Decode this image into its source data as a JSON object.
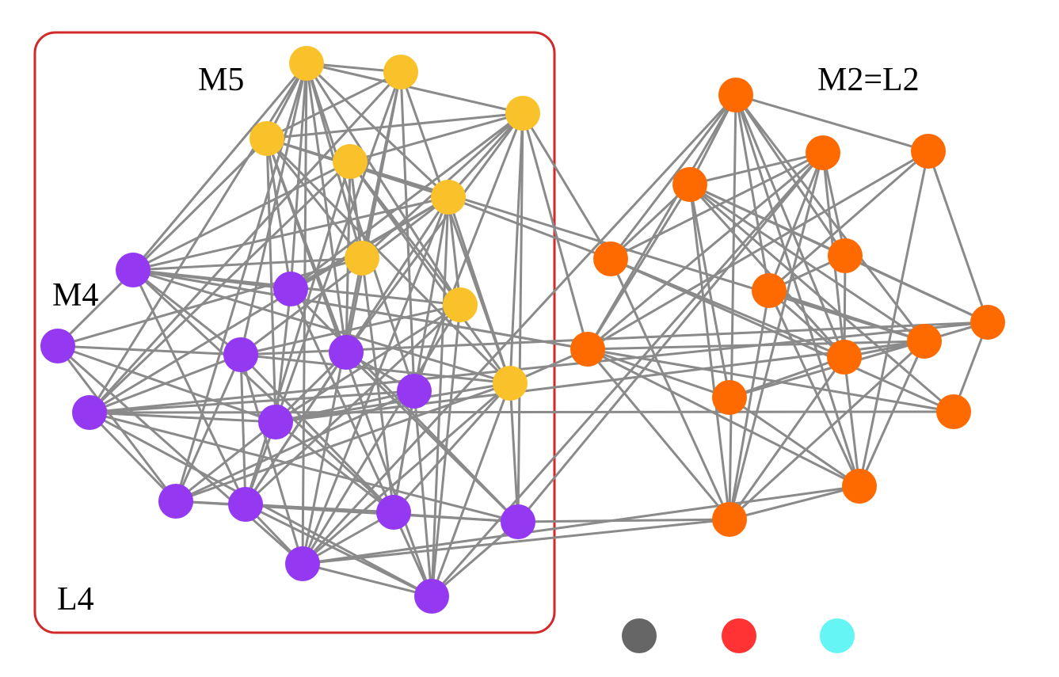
{
  "labels": {
    "m5": "M5",
    "m4": "M4",
    "m2_l2": "M2=L2",
    "l4": "L4"
  },
  "colors": {
    "M5": "#f9c22b",
    "M4": "#9438f2",
    "M2": "#ff6a00",
    "edge": "#8a8a8a",
    "box": "#d12a2a"
  },
  "nodes": [
    {
      "id": "y1",
      "group": "M5"
    },
    {
      "id": "y2",
      "group": "M5"
    },
    {
      "id": "y3",
      "group": "M5"
    },
    {
      "id": "y4",
      "group": "M5"
    },
    {
      "id": "y5",
      "group": "M5"
    },
    {
      "id": "y6",
      "group": "M5"
    },
    {
      "id": "y7",
      "group": "M5"
    },
    {
      "id": "y8",
      "group": "M5"
    },
    {
      "id": "y9",
      "group": "M5"
    },
    {
      "id": "p1",
      "group": "M4"
    },
    {
      "id": "p2",
      "group": "M4"
    },
    {
      "id": "p3",
      "group": "M4"
    },
    {
      "id": "p4",
      "group": "M4"
    },
    {
      "id": "p5",
      "group": "M4"
    },
    {
      "id": "p6",
      "group": "M4"
    },
    {
      "id": "p7",
      "group": "M4"
    },
    {
      "id": "p8",
      "group": "M4"
    },
    {
      "id": "p9",
      "group": "M4"
    },
    {
      "id": "p10",
      "group": "M4"
    },
    {
      "id": "p11",
      "group": "M4"
    },
    {
      "id": "p12",
      "group": "M4"
    },
    {
      "id": "p13",
      "group": "M4"
    },
    {
      "id": "o1",
      "group": "M2"
    },
    {
      "id": "o2",
      "group": "M2"
    },
    {
      "id": "o3",
      "group": "M2"
    },
    {
      "id": "o4",
      "group": "M2"
    },
    {
      "id": "o5",
      "group": "M2"
    },
    {
      "id": "o6",
      "group": "M2"
    },
    {
      "id": "o7",
      "group": "M2"
    },
    {
      "id": "o8",
      "group": "M2"
    },
    {
      "id": "o9",
      "group": "M2"
    },
    {
      "id": "o10",
      "group": "M2"
    },
    {
      "id": "o11",
      "group": "M2"
    },
    {
      "id": "o12",
      "group": "M2"
    },
    {
      "id": "o13",
      "group": "M2"
    },
    {
      "id": "o14",
      "group": "M2"
    }
  ],
  "legend": [
    {
      "color": "#666666"
    },
    {
      "color": "#ff3333"
    },
    {
      "color": "#66f5f5"
    }
  ]
}
